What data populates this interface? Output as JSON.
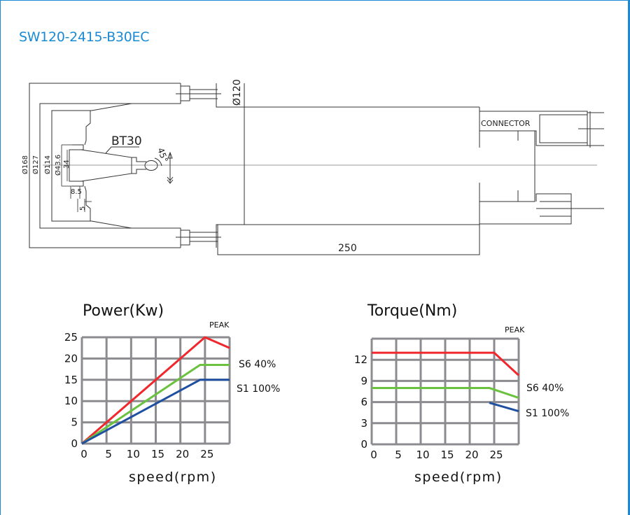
{
  "header": {
    "title": "SW120-2415-B30EC"
  },
  "drawing": {
    "dims": {
      "d168": "Ø168",
      "d127": "Ø127",
      "d114": "Ø114",
      "d43": "Ø43.6",
      "l34": "34",
      "l85": "8.5",
      "l5": "5",
      "angle": "45°",
      "d120": "Ø120",
      "length": "250"
    },
    "labels": {
      "taper": "BT30",
      "connector": "CONNECTOR"
    }
  },
  "colors": {
    "peak": "#f0282d",
    "s6": "#6ac23f",
    "s1": "#1f4fa0",
    "grid": "#8c8c90",
    "title": "#1a8ad4"
  },
  "chart_data": [
    {
      "type": "line",
      "title": "Power(Kw)",
      "xlabel": "speed(rpm)",
      "ylabel": "",
      "xlim": [
        0,
        30
      ],
      "ylim": [
        0,
        25
      ],
      "xticks": [
        0,
        5,
        10,
        15,
        20,
        25
      ],
      "yticks": [
        0,
        5,
        10,
        15,
        20,
        25
      ],
      "grid": true,
      "series": [
        {
          "name": "PEAK",
          "color": "#f0282d",
          "points": [
            [
              0,
              0
            ],
            [
              25,
              25
            ],
            [
              30,
              22.5
            ]
          ]
        },
        {
          "name": "S6 40%",
          "color": "#6ac23f",
          "points": [
            [
              0,
              0
            ],
            [
              24,
              18.5
            ],
            [
              30,
              18.5
            ]
          ]
        },
        {
          "name": "S1 100%",
          "color": "#1f4fa0",
          "points": [
            [
              0,
              0
            ],
            [
              24,
              15
            ],
            [
              30,
              15
            ]
          ]
        }
      ]
    },
    {
      "type": "line",
      "title": "Torque(Nm)",
      "xlabel": "speed(rpm)",
      "ylabel": "",
      "xlim": [
        0,
        30
      ],
      "ylim": [
        0,
        15
      ],
      "xticks": [
        0,
        5,
        10,
        15,
        20,
        25
      ],
      "yticks": [
        0,
        3,
        6,
        9,
        12
      ],
      "grid": true,
      "series": [
        {
          "name": "PEAK",
          "color": "#f0282d",
          "points": [
            [
              0,
              13
            ],
            [
              25,
              13
            ],
            [
              30,
              9.8
            ]
          ]
        },
        {
          "name": "S6 40%",
          "color": "#6ac23f",
          "points": [
            [
              0,
              8
            ],
            [
              24,
              8
            ],
            [
              30,
              6.6
            ]
          ]
        },
        {
          "name": "S1 100%",
          "color": "#1f4fa0",
          "points": [
            [
              24,
              5.9
            ],
            [
              30,
              4.7
            ]
          ]
        }
      ]
    }
  ]
}
